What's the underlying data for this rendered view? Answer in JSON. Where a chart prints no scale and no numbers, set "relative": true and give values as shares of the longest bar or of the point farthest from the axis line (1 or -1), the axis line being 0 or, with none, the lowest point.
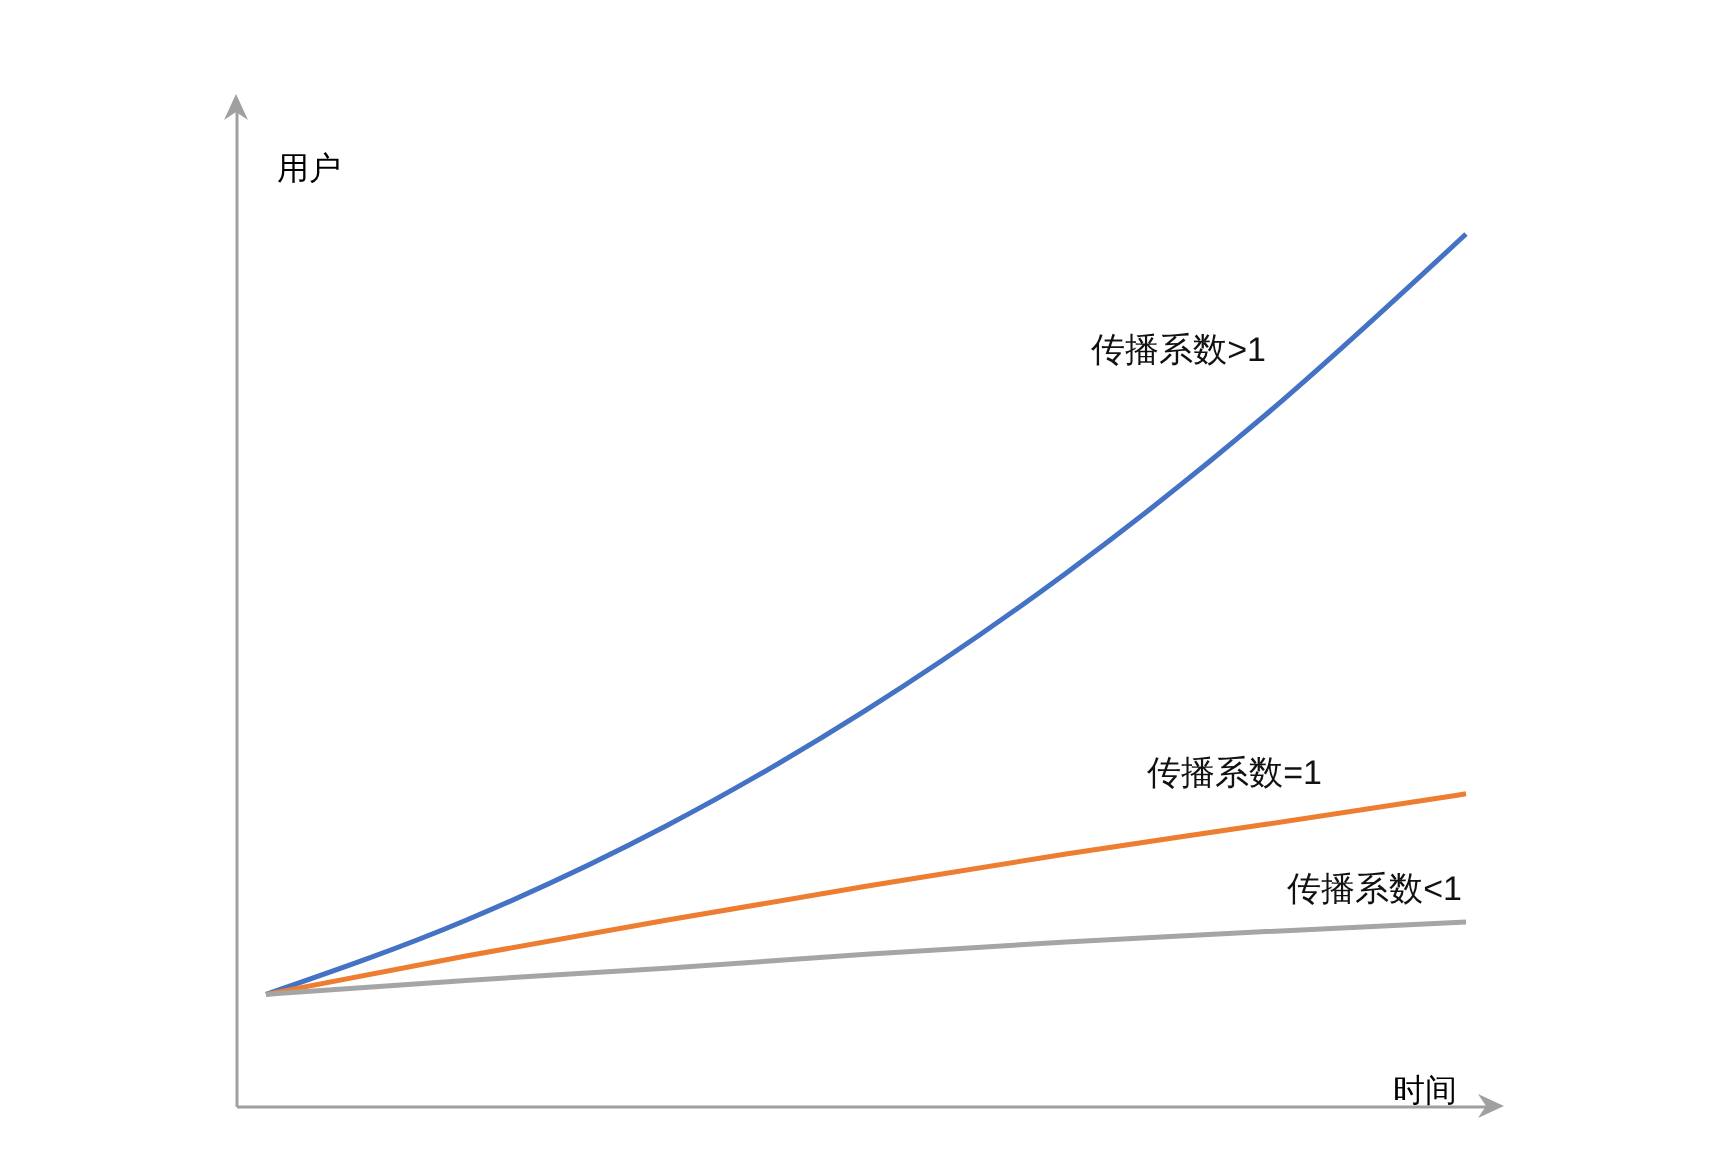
{
  "chart_data": {
    "type": "line",
    "relative": true,
    "xlabel": "时间",
    "ylabel": "用户",
    "grid": false,
    "legend": false,
    "categories": [
      null,
      null,
      null,
      null,
      null,
      null,
      null
    ],
    "series": [
      {
        "name": "传播系数>1",
        "color": "#4472c4",
        "values": [
          0.128,
          0.213,
          0.321,
          0.454,
          0.611,
          0.793,
          1
        ]
      },
      {
        "name": "传播系数=1",
        "color": "#ed7d31",
        "values": [
          0.128,
          0.172,
          0.213,
          0.252,
          0.289,
          0.323,
          0.358
        ]
      },
      {
        "name": "传播系数<1",
        "color": "#a5a5a5",
        "values": [
          0.128,
          0.144,
          0.158,
          0.174,
          0.188,
          0.2,
          0.211
        ]
      }
    ]
  }
}
